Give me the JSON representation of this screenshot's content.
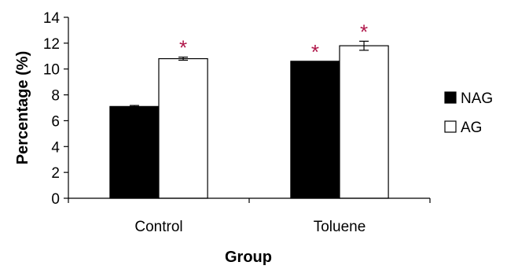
{
  "chart_data": {
    "type": "bar",
    "xlabel": "Group",
    "ylabel": "Percentage (%)",
    "ylim": [
      0,
      14
    ],
    "yticks": [
      "0",
      "2",
      "4",
      "6",
      "8",
      "10",
      "12",
      "14"
    ],
    "categories": [
      "Control",
      "Toluene"
    ],
    "series": [
      {
        "name": "NAG",
        "values": [
          7.1,
          10.6
        ],
        "errors": [
          0.08,
          0.0
        ],
        "significant": [
          false,
          true
        ],
        "fill": "#000000"
      },
      {
        "name": "AG",
        "values": [
          10.8,
          11.8
        ],
        "errors": [
          0.12,
          0.35
        ],
        "significant": [
          true,
          true
        ],
        "fill": "#ffffff"
      }
    ],
    "significance_marker": "*",
    "significance_color": "#b0174a",
    "legend_position": "right",
    "grid": false
  }
}
